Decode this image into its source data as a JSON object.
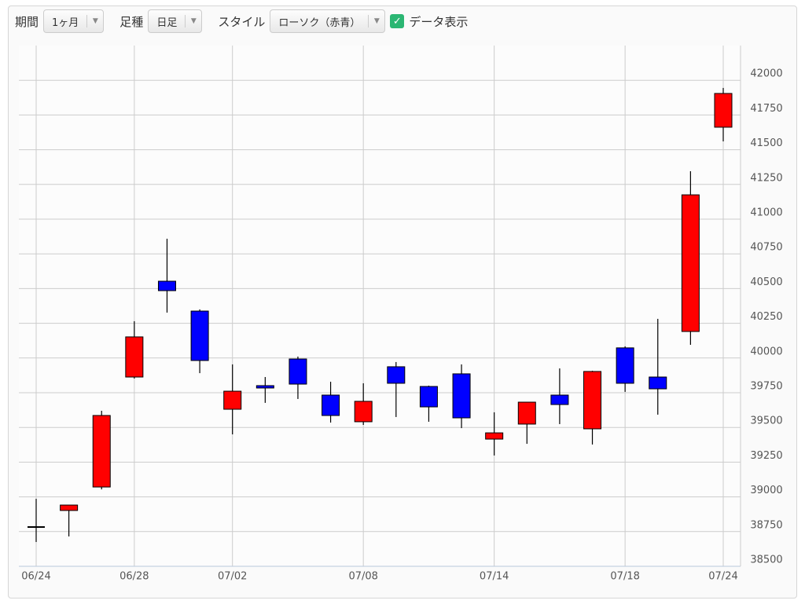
{
  "toolbar": {
    "period_label": "期間",
    "period_value": "1ヶ月",
    "bar_label": "足種",
    "bar_value": "日足",
    "style_label": "スタイル",
    "style_value": "ローソク（赤青）",
    "data_toggle": "データ表示"
  },
  "chart_data": {
    "type": "candlestick",
    "categories": [
      "06/24",
      null,
      null,
      "06/28",
      null,
      null,
      "07/02",
      null,
      null,
      null,
      "07/08",
      null,
      null,
      null,
      "07/14",
      null,
      null,
      null,
      "07/18",
      null,
      null,
      "07/24"
    ],
    "open": [
      38783,
      38902,
      39071,
      39863,
      40553,
      40338,
      39631,
      39801,
      39993,
      39733,
      39541,
      39937,
      39795,
      39886,
      39416,
      39524,
      39733,
      39490,
      40073,
      39863,
      40191,
      41662
    ],
    "high": [
      38986,
      38941,
      39620,
      40265,
      40859,
      40350,
      39954,
      39863,
      40010,
      39829,
      39818,
      39971,
      39801,
      39954,
      39609,
      39682,
      39925,
      39908,
      40084,
      40282,
      41345,
      41945
    ],
    "low": [
      38675,
      38715,
      39054,
      39852,
      40327,
      39891,
      39450,
      39677,
      39705,
      39535,
      39518,
      39575,
      39541,
      39495,
      39298,
      39382,
      39524,
      39377,
      39756,
      39592,
      40095,
      41560
    ],
    "close": [
      38783,
      38941,
      39586,
      40152,
      40485,
      39982,
      39761,
      39784,
      39812,
      39586,
      39688,
      39818,
      39648,
      39569,
      39461,
      39682,
      39665,
      39903,
      39818,
      39778,
      41175,
      41905
    ],
    "up_color": "#ff0000",
    "down_color": "#0000ff",
    "ylim": [
      38500,
      42250
    ],
    "yticks": [
      38500,
      38750,
      39000,
      39250,
      39500,
      39750,
      40000,
      40250,
      40500,
      40750,
      41000,
      41250,
      41500,
      41750,
      42000
    ],
    "grid": true
  }
}
